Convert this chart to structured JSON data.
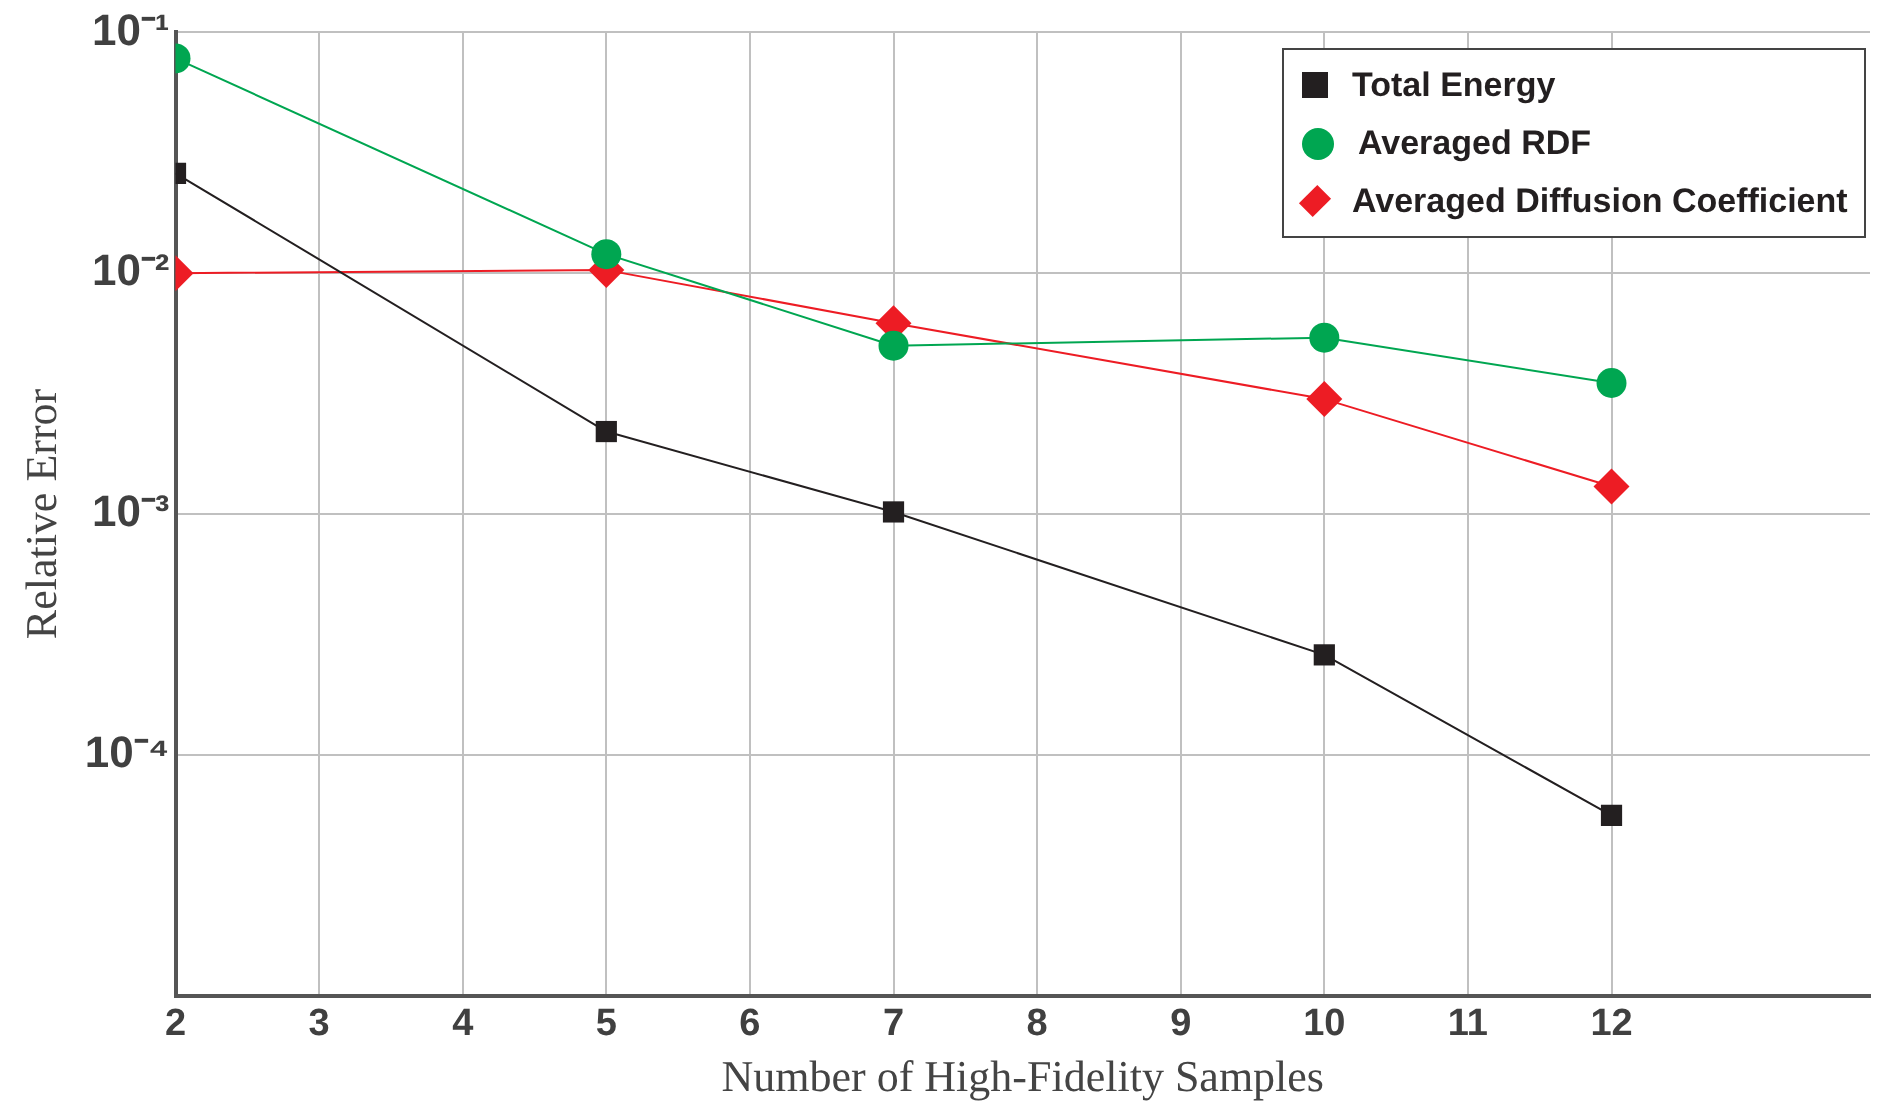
{
  "chart_data": {
    "type": "line",
    "xlabel": "Number of High-Fidelity Samples",
    "ylabel": "Relative Error",
    "log": "y",
    "grid": true,
    "legend": "top right",
    "line_style": "solid",
    "x": [
      2,
      5,
      7,
      10,
      12
    ],
    "xlim": [
      2,
      13.8
    ],
    "xticks": [
      2,
      3,
      4,
      5,
      6,
      7,
      8,
      9,
      10,
      11,
      12
    ],
    "ylim": [
      1e-05,
      0.1
    ],
    "yticks": [
      {
        "value": 0.1,
        "label": "10⁻¹"
      },
      {
        "value": 0.01,
        "label": "10⁻²"
      },
      {
        "value": 0.001,
        "label": "10⁻³"
      },
      {
        "value": 0.0001,
        "label": "10⁻⁴"
      }
    ],
    "series": [
      {
        "name": "Total Energy",
        "color": "#231f20",
        "marker": "square",
        "values": [
          0.026,
          0.0022,
          0.00102,
          0.00026,
          5.6e-05
        ]
      },
      {
        "name": "Averaged RDF",
        "color": "#00a651",
        "marker": "circle",
        "values": [
          0.078,
          0.012,
          0.005,
          0.0054,
          0.0035
        ]
      },
      {
        "name": "Averaged Diffusion Coefficient",
        "color": "#ed1c24",
        "marker": "diamond",
        "values": [
          0.01,
          0.0103,
          0.0062,
          0.003,
          0.0013
        ]
      }
    ]
  }
}
